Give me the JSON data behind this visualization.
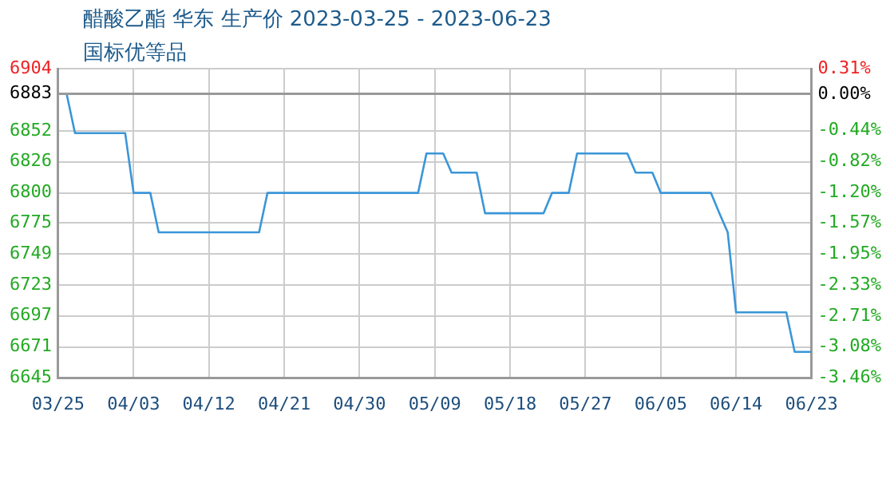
{
  "chart_data": {
    "type": "line",
    "title": "醋酸乙酯 华东 生产价 2023-03-25 - 2023-06-23",
    "subtitle": "国标优等品",
    "series": [
      {
        "color": "#3a96d8",
        "x": [
          "--03-25",
          "--03-26",
          "--03-27",
          "--04-02",
          "--04-03",
          "--04-05",
          "--04-06",
          "--04-18",
          "--04-19",
          "--05-07",
          "--05-08",
          "--05-10",
          "--05-11",
          "--05-14",
          "--05-15",
          "--05-22",
          "--05-23",
          "--05-25",
          "--05-26",
          "--06-01",
          "--06-02",
          "--06-04",
          "--06-05",
          "--06-11",
          "--06-12",
          "--06-13",
          "--06-14",
          "--06-20",
          "--06-21",
          "--06-23"
        ],
        "values": [
          6883,
          6883,
          6850,
          6850,
          6800,
          6800,
          6767,
          6767,
          6800,
          6800,
          6833,
          6833,
          6817,
          6817,
          6783,
          6783,
          6800,
          6800,
          6833,
          6833,
          6817,
          6817,
          6800,
          6800,
          6783,
          6767,
          6700,
          6700,
          6667,
          6667
        ]
      }
    ],
    "xlim": [
      "--03-25",
      "--06-23"
    ],
    "xticks": [
      {
        "value": "--03-25",
        "label": "03/25"
      },
      {
        "value": "--04-03",
        "label": "04/03"
      },
      {
        "value": "--04-12",
        "label": "04/12"
      },
      {
        "value": "--04-21",
        "label": "04/21"
      },
      {
        "value": "--04-30",
        "label": "04/30"
      },
      {
        "value": "--05-09",
        "label": "05/09"
      },
      {
        "value": "--05-18",
        "label": "05/18"
      },
      {
        "value": "--05-27",
        "label": "05/27"
      },
      {
        "value": "--06-05",
        "label": "06/05"
      },
      {
        "value": "--06-14",
        "label": "06/14"
      },
      {
        "value": "--06-23",
        "label": "06/23"
      }
    ],
    "ylim": [
      6645,
      6904
    ],
    "yticks": [
      {
        "value": 6645,
        "label": "6645"
      },
      {
        "value": 6671,
        "label": "6671"
      },
      {
        "value": 6697,
        "label": "6697"
      },
      {
        "value": 6723,
        "label": "6723"
      },
      {
        "value": 6749,
        "label": "6749"
      },
      {
        "value": 6775,
        "label": "6775"
      },
      {
        "value": 6800,
        "label": "6800"
      },
      {
        "value": 6826,
        "label": "6826"
      },
      {
        "value": 6852,
        "label": "6852"
      },
      {
        "value": 6883,
        "label": "6883"
      },
      {
        "value": 6904,
        "label": "6904"
      }
    ],
    "y2lim": [
      -3.46,
      0.31
    ],
    "y2ticks": [
      {
        "value": -3.46,
        "label": "-3.46%"
      },
      {
        "value": -3.08,
        "label": "-3.08%"
      },
      {
        "value": -2.71,
        "label": "-2.71%"
      },
      {
        "value": -2.33,
        "label": "-2.33%"
      },
      {
        "value": -1.95,
        "label": "-1.95%"
      },
      {
        "value": -1.57,
        "label": "-1.57%"
      },
      {
        "value": -1.2,
        "label": "-1.20%"
      },
      {
        "value": -0.82,
        "label": "-0.82%"
      },
      {
        "value": -0.44,
        "label": "-0.44%"
      },
      {
        "value": 0,
        "label": "0.00%"
      },
      {
        "value": 0.31,
        "label": "0.31%"
      }
    ],
    "ref_lines": [
      {
        "axis": "y",
        "value": 6883,
        "color": "#999999"
      }
    ],
    "grid": true,
    "legend": false,
    "marker": "none",
    "line_style": "solid"
  }
}
